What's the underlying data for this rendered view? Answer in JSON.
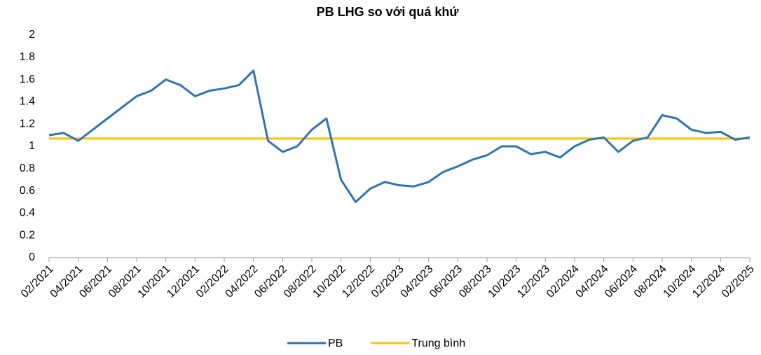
{
  "chart_data": {
    "type": "line",
    "title": "PB LHG so với quá khứ",
    "x": [
      "02/2021",
      null,
      "04/2021",
      null,
      "06/2021",
      null,
      "08/2021",
      null,
      "10/2021",
      null,
      "12/2021",
      null,
      "02/2022",
      null,
      "04/2022",
      null,
      "06/2022",
      null,
      "08/2022",
      null,
      "10/2022",
      null,
      "12/2022",
      null,
      "02/2023",
      null,
      "04/2023",
      null,
      "06/2023",
      null,
      "08/2023",
      null,
      "10/2023",
      null,
      "12/2023",
      null,
      "02/2024",
      null,
      "04/2024",
      null,
      "06/2024",
      null,
      "08/2024",
      null,
      "10/2024",
      null,
      "12/2024",
      null,
      "02/2025"
    ],
    "series": [
      {
        "name": "PB",
        "color": "#2e75b6",
        "values": [
          1.1,
          1.12,
          1.05,
          1.15,
          1.25,
          1.35,
          1.45,
          1.5,
          1.6,
          1.55,
          1.45,
          1.5,
          1.52,
          1.55,
          1.68,
          1.05,
          0.95,
          1.0,
          1.15,
          1.25,
          0.7,
          0.5,
          0.62,
          0.68,
          0.65,
          0.64,
          0.68,
          0.77,
          0.82,
          0.88,
          0.92,
          1.0,
          1.0,
          0.93,
          0.95,
          0.9,
          1.0,
          1.06,
          1.08,
          0.95,
          1.05,
          1.08,
          1.28,
          1.25,
          1.15,
          1.12,
          1.13,
          1.06,
          1.08
        ]
      },
      {
        "name": "Trung bình",
        "color": "#ffc000",
        "values": [
          1.07,
          1.07,
          1.07,
          1.07,
          1.07,
          1.07,
          1.07,
          1.07,
          1.07,
          1.07,
          1.07,
          1.07,
          1.07,
          1.07,
          1.07,
          1.07,
          1.07,
          1.07,
          1.07,
          1.07,
          1.07,
          1.07,
          1.07,
          1.07,
          1.07,
          1.07,
          1.07,
          1.07,
          1.07,
          1.07,
          1.07,
          1.07,
          1.07,
          1.07,
          1.07,
          1.07,
          1.07,
          1.07,
          1.07,
          1.07,
          1.07,
          1.07,
          1.07,
          1.07,
          1.07,
          1.07,
          1.07,
          1.07,
          1.07
        ]
      }
    ],
    "ylim": [
      0,
      2
    ],
    "yticks": [
      0,
      0.2,
      0.4,
      0.6,
      0.8,
      1,
      1.2,
      1.4,
      1.6,
      1.8,
      2
    ],
    "grid": false,
    "legend": "bottom"
  }
}
